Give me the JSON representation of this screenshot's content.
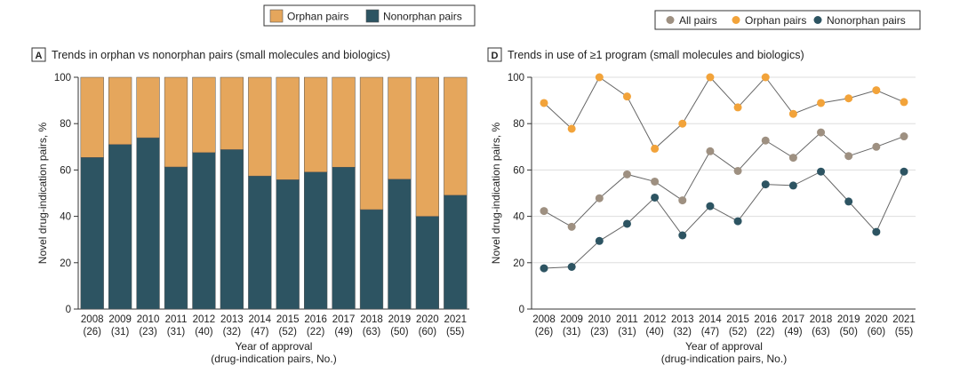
{
  "colors": {
    "orphan": "#E5A65C",
    "nonorphan": "#2D5462",
    "all": "#9E9081",
    "orphan_dot": "#F2A33A",
    "nonorphan_dot": "#2D5462",
    "grid": "#DDDDDD",
    "line": "#666666"
  },
  "chart_data": [
    {
      "type": "bar",
      "stacked": true,
      "panel_letter": "A",
      "title": "Trends in orphan vs nonorphan pairs (small molecules and biologics)",
      "legend": {
        "placement": "top-center",
        "items": [
          "Orphan pairs",
          "Nonorphan pairs"
        ]
      },
      "categories": [
        "2008",
        "2009",
        "2010",
        "2011",
        "2012",
        "2013",
        "2014",
        "2015",
        "2016",
        "2017",
        "2018",
        "2019",
        "2020",
        "2021"
      ],
      "category_counts": [
        "(26)",
        "(31)",
        "(23)",
        "(31)",
        "(40)",
        "(32)",
        "(47)",
        "(52)",
        "(22)",
        "(49)",
        "(63)",
        "(50)",
        "(60)",
        "(55)"
      ],
      "series": [
        {
          "name": "Nonorphan pairs",
          "values": [
            65.4,
            71.0,
            73.9,
            61.3,
            67.5,
            68.8,
            57.4,
            55.8,
            59.1,
            61.2,
            42.9,
            56.0,
            40.0,
            49.1
          ]
        },
        {
          "name": "Orphan pairs",
          "values": [
            34.6,
            29.0,
            26.1,
            38.7,
            32.5,
            31.2,
            42.6,
            44.2,
            40.9,
            38.8,
            57.1,
            44.0,
            60.0,
            50.9
          ]
        }
      ],
      "ylabel": "Novel drug-indication pairs, %",
      "xlabel": [
        "Year of approval",
        "(drug-indication pairs, No.)"
      ],
      "ylim": [
        0,
        100
      ],
      "yticks": [
        "0",
        "20",
        "40",
        "60",
        "80",
        "100"
      ],
      "grid": false
    },
    {
      "type": "line",
      "panel_letter": "D",
      "title": "Trends in use of ≥1 program (small molecules and biologics)",
      "legend": {
        "placement": "top-right",
        "items": [
          "All pairs",
          "Orphan pairs",
          "Nonorphan pairs"
        ]
      },
      "categories": [
        "2008",
        "2009",
        "2010",
        "2011",
        "2012",
        "2013",
        "2014",
        "2015",
        "2016",
        "2017",
        "2018",
        "2019",
        "2020",
        "2021"
      ],
      "category_counts": [
        "(26)",
        "(31)",
        "(23)",
        "(31)",
        "(40)",
        "(32)",
        "(47)",
        "(52)",
        "(22)",
        "(49)",
        "(63)",
        "(50)",
        "(60)",
        "(55)"
      ],
      "series": [
        {
          "name": "All pairs",
          "values": [
            42.3,
            35.5,
            47.8,
            58.1,
            55.0,
            46.9,
            68.1,
            59.6,
            72.7,
            65.3,
            76.2,
            66.0,
            70.0,
            74.5
          ]
        },
        {
          "name": "Orphan pairs",
          "values": [
            88.9,
            77.8,
            100,
            91.7,
            69.2,
            80.0,
            100,
            87.0,
            100,
            84.2,
            88.9,
            90.9,
            94.4,
            89.3
          ]
        },
        {
          "name": "Nonorphan pairs",
          "values": [
            17.6,
            18.2,
            29.4,
            36.8,
            48.1,
            31.8,
            44.4,
            37.9,
            53.8,
            53.3,
            59.3,
            46.4,
            33.3,
            59.3
          ]
        }
      ],
      "ylabel": "Novel drug-indication pairs, %",
      "xlabel": [
        "Year of approval",
        "(drug-indication pairs, No.)"
      ],
      "ylim": [
        0,
        100
      ],
      "yticks": [
        "0",
        "20",
        "40",
        "60",
        "80",
        "100"
      ],
      "grid": true
    }
  ]
}
